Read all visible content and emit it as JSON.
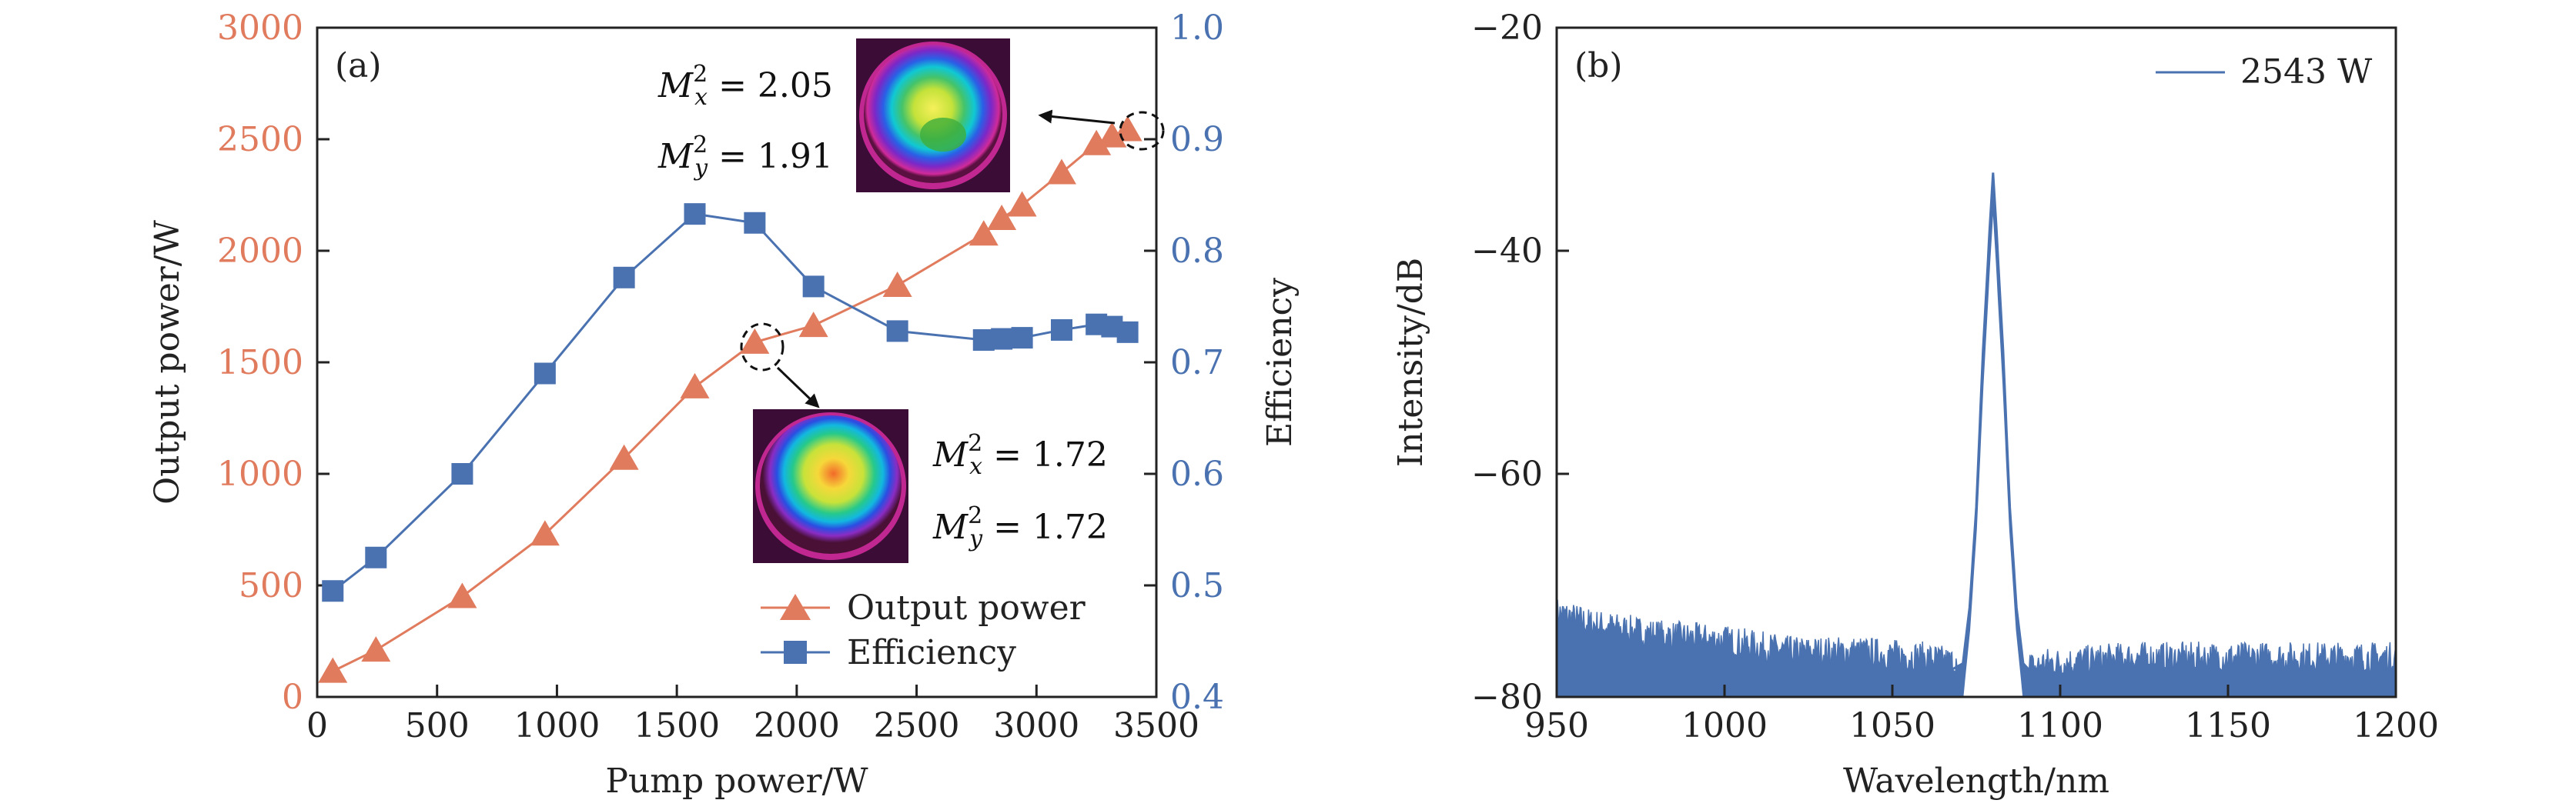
{
  "colors": {
    "output": "#E07B5E",
    "efficiency": "#4A72B0",
    "spectrum": "#4A72B0",
    "axis": "#222222"
  },
  "chart_data": [
    {
      "id": "a",
      "type": "line",
      "panel_label": "(a)",
      "title": "",
      "xlabel": "Pump power/W",
      "ylabel_left": "Output power/W",
      "ylabel_right": "Efficiency",
      "xlim": [
        0,
        3500
      ],
      "ylim_left": [
        0,
        3000
      ],
      "ylim_right": [
        0.4,
        1.0
      ],
      "xticks": [
        0,
        500,
        1000,
        1500,
        2000,
        2500,
        3000,
        3500
      ],
      "yticks_left": [
        0,
        500,
        1000,
        1500,
        2000,
        2500,
        3000
      ],
      "yticks_right": [
        0.4,
        0.5,
        0.6,
        0.7,
        0.8,
        0.9,
        1.0
      ],
      "legend_position": "bottom-right",
      "series": [
        {
          "name": "Output power",
          "axis": "left",
          "marker": "triangle",
          "x": [
            65,
            245,
            605,
            950,
            1280,
            1575,
            1825,
            2070,
            2420,
            2780,
            2855,
            2940,
            3105,
            3250,
            3315,
            3380
          ],
          "y": [
            115,
            210,
            450,
            730,
            1070,
            1390,
            1590,
            1665,
            1845,
            2075,
            2145,
            2205,
            2350,
            2480,
            2515,
            2543
          ]
        },
        {
          "name": "Efficiency",
          "axis": "right",
          "marker": "square",
          "x": [
            65,
            245,
            605,
            950,
            1280,
            1575,
            1825,
            2070,
            2420,
            2780,
            2855,
            2940,
            3105,
            3250,
            3315,
            3380
          ],
          "y": [
            0.495,
            0.525,
            0.6,
            0.69,
            0.776,
            0.833,
            0.825,
            0.768,
            0.728,
            0.72,
            0.721,
            0.722,
            0.729,
            0.734,
            0.732,
            0.727
          ]
        }
      ],
      "insets": [
        {
          "name": "beam-profile-2543W",
          "mx_value": "2.05",
          "my_value": "1.91"
        },
        {
          "name": "beam-profile-1590W",
          "mx_value": "1.72",
          "my_value": "1.72"
        }
      ]
    },
    {
      "id": "b",
      "type": "line",
      "panel_label": "(b)",
      "title": "",
      "xlabel": "Wavelength/nm",
      "ylabel": "Intensity/dB",
      "xlim": [
        950,
        1200
      ],
      "ylim": [
        -80,
        -20
      ],
      "xticks": [
        950,
        1000,
        1050,
        1100,
        1150,
        1200
      ],
      "yticks": [
        -80,
        -60,
        -40,
        -20
      ],
      "legend_position": "top-right",
      "series": [
        {
          "name": "2543 W",
          "noise_floor_db": -80,
          "peak": {
            "wavelength_nm": 1080,
            "intensity_db": -33
          },
          "x_nm": [
            950,
            960,
            970,
            980,
            1000,
            1020,
            1040,
            1060,
            1068,
            1071,
            1073,
            1075,
            1077,
            1079,
            1080,
            1081,
            1083,
            1085,
            1087,
            1089,
            1092,
            1095,
            1100,
            1120,
            1140,
            1160,
            1180,
            1200
          ],
          "upper_db": [
            -73,
            -74,
            -74.5,
            -75,
            -75.5,
            -76.5,
            -76.5,
            -77,
            -77.5,
            -77,
            -72,
            -63,
            -49,
            -38,
            -33,
            -38,
            -49,
            -63,
            -72,
            -77,
            -78,
            -77.5,
            -77.5,
            -77,
            -77,
            -77,
            -77,
            -77
          ],
          "lower_db": [
            -80,
            -80,
            -80,
            -80,
            -80,
            -80,
            -80,
            -80,
            -80,
            -80,
            -74,
            -65,
            -52,
            -41,
            -36,
            -41,
            -52,
            -65,
            -74,
            -80,
            -80,
            -80,
            -80,
            -80,
            -80,
            -80,
            -80,
            -80
          ]
        }
      ]
    }
  ]
}
